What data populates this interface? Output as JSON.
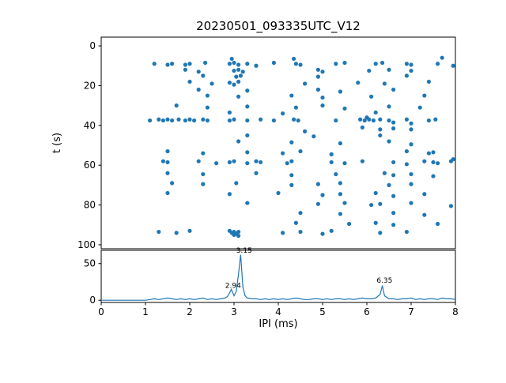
{
  "figure": {
    "title": "20230501_093335UTC_V12",
    "accent_color": "#1f77b4",
    "axis_color": "#000000"
  },
  "chart_data": [
    {
      "type": "scatter",
      "title": "20230501_093335UTC_V12",
      "xlabel": "IPI (ms)",
      "ylabel": "t (s)",
      "xlim": [
        0,
        8
      ],
      "ylim": [
        100,
        0
      ],
      "y_inverted": true,
      "grid": false,
      "legend": "none",
      "xticks": [
        0,
        1,
        2,
        3,
        4,
        5,
        6,
        7,
        8
      ],
      "yticks": [
        0,
        20,
        40,
        60,
        80,
        100
      ],
      "marker_color": "#1f77b4",
      "points": [
        [
          2.95,
          6.5
        ],
        [
          4.35,
          6.5
        ],
        [
          7.7,
          6
        ],
        [
          1.2,
          9
        ],
        [
          1.5,
          9.5
        ],
        [
          1.6,
          9
        ],
        [
          1.9,
          9.5
        ],
        [
          2.0,
          9
        ],
        [
          2.35,
          8.5
        ],
        [
          2.9,
          9
        ],
        [
          3.0,
          8.5
        ],
        [
          3.1,
          9.5
        ],
        [
          3.3,
          9
        ],
        [
          3.5,
          10
        ],
        [
          3.9,
          8.5
        ],
        [
          4.4,
          9
        ],
        [
          4.5,
          9.5
        ],
        [
          5.3,
          9
        ],
        [
          5.5,
          8.5
        ],
        [
          6.2,
          9
        ],
        [
          6.35,
          8.5
        ],
        [
          6.9,
          9
        ],
        [
          7.0,
          9.5
        ],
        [
          7.6,
          9
        ],
        [
          7.95,
          10
        ],
        [
          1.9,
          12
        ],
        [
          2.2,
          13
        ],
        [
          3.0,
          12.5
        ],
        [
          3.1,
          12
        ],
        [
          3.2,
          13
        ],
        [
          4.9,
          12
        ],
        [
          5.0,
          13
        ],
        [
          6.05,
          12.5
        ],
        [
          6.5,
          12
        ],
        [
          7.0,
          12.5
        ],
        [
          2.3,
          15
        ],
        [
          3.05,
          15.5
        ],
        [
          3.15,
          15
        ],
        [
          4.9,
          15.5
        ],
        [
          6.9,
          15
        ],
        [
          2.0,
          18
        ],
        [
          2.5,
          19
        ],
        [
          2.9,
          18.5
        ],
        [
          3.0,
          19.5
        ],
        [
          3.1,
          18
        ],
        [
          4.6,
          19
        ],
        [
          5.8,
          18.5
        ],
        [
          6.4,
          19
        ],
        [
          7.4,
          18
        ],
        [
          2.2,
          22
        ],
        [
          3.3,
          22.5
        ],
        [
          4.9,
          22
        ],
        [
          5.4,
          23
        ],
        [
          6.6,
          22
        ],
        [
          2.4,
          25
        ],
        [
          3.1,
          25.5
        ],
        [
          4.3,
          25
        ],
        [
          5.0,
          26
        ],
        [
          6.1,
          25.5
        ],
        [
          7.3,
          25
        ],
        [
          1.7,
          30
        ],
        [
          2.4,
          31
        ],
        [
          3.3,
          30.5
        ],
        [
          4.4,
          31
        ],
        [
          5.0,
          30
        ],
        [
          5.5,
          31.5
        ],
        [
          6.5,
          30.5
        ],
        [
          7.2,
          31
        ],
        [
          2.9,
          33.5
        ],
        [
          4.1,
          34
        ],
        [
          6.2,
          33.5
        ],
        [
          1.1,
          37.5
        ],
        [
          1.3,
          37
        ],
        [
          1.4,
          37.5
        ],
        [
          1.5,
          37
        ],
        [
          1.6,
          37.5
        ],
        [
          1.75,
          37
        ],
        [
          1.9,
          37.5
        ],
        [
          2.0,
          37
        ],
        [
          2.1,
          37.5
        ],
        [
          2.3,
          37
        ],
        [
          2.4,
          37.5
        ],
        [
          2.9,
          37.5
        ],
        [
          3.0,
          37
        ],
        [
          3.3,
          37.5
        ],
        [
          3.6,
          37
        ],
        [
          3.9,
          37.5
        ],
        [
          4.35,
          37
        ],
        [
          4.45,
          37.5
        ],
        [
          5.3,
          37.5
        ],
        [
          5.85,
          37
        ],
        [
          5.95,
          37.5
        ],
        [
          6.05,
          37
        ],
        [
          6.15,
          37.5
        ],
        [
          6.3,
          37
        ],
        [
          6.5,
          37.5
        ],
        [
          6.9,
          37
        ],
        [
          7.4,
          37.5
        ],
        [
          7.55,
          37
        ],
        [
          6.0,
          36
        ],
        [
          6.6,
          38.5
        ],
        [
          7.0,
          39
        ],
        [
          5.9,
          41
        ],
        [
          6.3,
          42
        ],
        [
          6.6,
          41.5
        ],
        [
          7.0,
          42
        ],
        [
          4.6,
          43
        ],
        [
          3.3,
          45
        ],
        [
          4.8,
          45.5
        ],
        [
          6.3,
          45
        ],
        [
          3.1,
          48
        ],
        [
          4.3,
          48.5
        ],
        [
          5.4,
          49
        ],
        [
          6.5,
          48
        ],
        [
          7.0,
          49.5
        ],
        [
          1.5,
          53
        ],
        [
          2.3,
          54
        ],
        [
          3.3,
          53.5
        ],
        [
          4.1,
          54
        ],
        [
          4.5,
          53
        ],
        [
          5.2,
          54.5
        ],
        [
          6.9,
          53
        ],
        [
          7.4,
          54
        ],
        [
          7.5,
          53.5
        ],
        [
          1.4,
          58
        ],
        [
          1.5,
          58.5
        ],
        [
          2.2,
          58
        ],
        [
          2.6,
          59
        ],
        [
          2.9,
          58.5
        ],
        [
          3.0,
          58
        ],
        [
          3.3,
          59
        ],
        [
          3.5,
          58
        ],
        [
          3.6,
          58.5
        ],
        [
          4.2,
          59
        ],
        [
          4.3,
          58
        ],
        [
          5.2,
          58.5
        ],
        [
          5.5,
          59
        ],
        [
          5.9,
          58
        ],
        [
          6.6,
          58.5
        ],
        [
          6.9,
          59.5
        ],
        [
          7.3,
          58
        ],
        [
          7.5,
          58.5
        ],
        [
          7.6,
          59
        ],
        [
          7.9,
          58
        ],
        [
          7.95,
          57
        ],
        [
          1.5,
          64
        ],
        [
          2.3,
          64.5
        ],
        [
          3.5,
          64
        ],
        [
          4.3,
          65
        ],
        [
          5.3,
          64.5
        ],
        [
          6.4,
          64
        ],
        [
          6.6,
          65
        ],
        [
          7.0,
          64.5
        ],
        [
          7.5,
          65.5
        ],
        [
          1.6,
          69
        ],
        [
          2.3,
          69.5
        ],
        [
          3.05,
          69
        ],
        [
          4.3,
          70
        ],
        [
          4.9,
          69.5
        ],
        [
          5.4,
          69
        ],
        [
          6.5,
          70
        ],
        [
          7.0,
          69.5
        ],
        [
          1.5,
          74
        ],
        [
          2.9,
          74.5
        ],
        [
          4.0,
          74
        ],
        [
          5.0,
          75
        ],
        [
          5.4,
          74.5
        ],
        [
          6.2,
          74
        ],
        [
          6.6,
          75.5
        ],
        [
          7.3,
          74.5
        ],
        [
          3.3,
          79
        ],
        [
          4.9,
          79.5
        ],
        [
          5.5,
          79
        ],
        [
          6.1,
          80
        ],
        [
          6.3,
          79.5
        ],
        [
          7.0,
          79
        ],
        [
          7.9,
          80.5
        ],
        [
          4.5,
          84
        ],
        [
          5.4,
          84.5
        ],
        [
          6.6,
          84
        ],
        [
          7.3,
          85
        ],
        [
          4.4,
          89
        ],
        [
          5.6,
          89.5
        ],
        [
          6.2,
          89
        ],
        [
          6.6,
          90
        ],
        [
          7.6,
          89.5
        ],
        [
          2.9,
          93
        ],
        [
          2.95,
          94
        ],
        [
          3.0,
          93.5
        ],
        [
          3.0,
          95
        ],
        [
          3.05,
          94.5
        ],
        [
          3.1,
          93.5
        ],
        [
          3.1,
          95.5
        ],
        [
          1.3,
          93.5
        ],
        [
          1.7,
          94
        ],
        [
          2.0,
          93
        ],
        [
          4.1,
          94
        ],
        [
          4.5,
          93.5
        ],
        [
          5.0,
          94.5
        ],
        [
          5.2,
          93
        ],
        [
          6.3,
          94
        ],
        [
          6.9,
          93.5
        ]
      ]
    },
    {
      "type": "line",
      "xlabel": "IPI (ms)",
      "ylabel": "",
      "xlim": [
        0,
        8
      ],
      "ylim": [
        0,
        68
      ],
      "grid": false,
      "legend": "none",
      "xticks": [
        0,
        1,
        2,
        3,
        4,
        5,
        6,
        7,
        8
      ],
      "yticks": [
        0,
        50
      ],
      "line_color": "#1f77b4",
      "annotations": [
        {
          "text": "2.94",
          "x": 2.8,
          "y": 17
        },
        {
          "text": "3.15",
          "x": 3.05,
          "y": 65
        },
        {
          "text": "6.35",
          "x": 6.22,
          "y": 24
        }
      ],
      "points": [
        [
          0,
          0
        ],
        [
          0.5,
          0
        ],
        [
          1.0,
          0
        ],
        [
          1.1,
          1
        ],
        [
          1.2,
          2
        ],
        [
          1.3,
          1
        ],
        [
          1.4,
          2
        ],
        [
          1.5,
          3
        ],
        [
          1.6,
          2
        ],
        [
          1.7,
          1
        ],
        [
          1.8,
          2
        ],
        [
          1.9,
          1
        ],
        [
          2.0,
          2
        ],
        [
          2.1,
          1
        ],
        [
          2.2,
          2
        ],
        [
          2.3,
          3
        ],
        [
          2.4,
          1
        ],
        [
          2.5,
          2
        ],
        [
          2.6,
          1
        ],
        [
          2.7,
          2
        ],
        [
          2.8,
          3
        ],
        [
          2.85,
          5
        ],
        [
          2.9,
          10
        ],
        [
          2.94,
          15
        ],
        [
          3.0,
          6
        ],
        [
          3.05,
          12
        ],
        [
          3.1,
          35
        ],
        [
          3.15,
          62
        ],
        [
          3.2,
          18
        ],
        [
          3.25,
          6
        ],
        [
          3.3,
          3
        ],
        [
          3.4,
          2
        ],
        [
          3.5,
          2
        ],
        [
          3.6,
          1
        ],
        [
          3.7,
          2
        ],
        [
          3.8,
          1
        ],
        [
          3.9,
          2
        ],
        [
          4.0,
          1
        ],
        [
          4.1,
          2
        ],
        [
          4.2,
          1
        ],
        [
          4.3,
          2
        ],
        [
          4.4,
          3
        ],
        [
          4.5,
          2
        ],
        [
          4.6,
          1
        ],
        [
          4.7,
          1
        ],
        [
          4.8,
          2
        ],
        [
          4.9,
          2
        ],
        [
          5.0,
          1
        ],
        [
          5.1,
          2
        ],
        [
          5.2,
          1
        ],
        [
          5.3,
          2
        ],
        [
          5.4,
          2
        ],
        [
          5.5,
          1
        ],
        [
          5.6,
          2
        ],
        [
          5.7,
          1
        ],
        [
          5.8,
          2
        ],
        [
          5.9,
          3
        ],
        [
          6.0,
          2
        ],
        [
          6.1,
          2
        ],
        [
          6.2,
          3
        ],
        [
          6.3,
          8
        ],
        [
          6.35,
          20
        ],
        [
          6.4,
          6
        ],
        [
          6.5,
          2
        ],
        [
          6.6,
          2
        ],
        [
          6.7,
          1
        ],
        [
          6.8,
          2
        ],
        [
          6.9,
          2
        ],
        [
          7.0,
          3
        ],
        [
          7.1,
          1
        ],
        [
          7.2,
          2
        ],
        [
          7.3,
          1
        ],
        [
          7.4,
          2
        ],
        [
          7.5,
          2
        ],
        [
          7.6,
          1
        ],
        [
          7.7,
          3
        ],
        [
          7.8,
          2
        ],
        [
          7.9,
          2
        ],
        [
          8.0,
          1
        ]
      ]
    }
  ]
}
